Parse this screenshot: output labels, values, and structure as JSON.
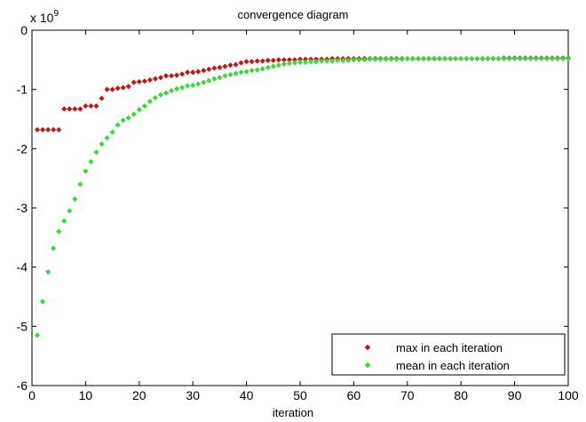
{
  "chart_data": {
    "type": "scatter",
    "title": "convergence diagram",
    "xlabel": "iteration",
    "ylabel": "",
    "y_multiplier_label": "x 10",
    "y_multiplier_exponent": "9",
    "xlim": [
      0,
      100
    ],
    "ylim": [
      -6,
      0
    ],
    "xticks": [
      0,
      10,
      20,
      30,
      40,
      50,
      60,
      70,
      80,
      90,
      100
    ],
    "yticks": [
      0,
      -1,
      -2,
      -3,
      -4,
      -5,
      -6
    ],
    "grid": false,
    "legend_position": "bottom-right",
    "series": [
      {
        "name": "max in each iteration",
        "color": "#cc1111",
        "x": [
          1,
          2,
          3,
          4,
          5,
          6,
          7,
          8,
          9,
          10,
          11,
          12,
          13,
          14,
          15,
          16,
          17,
          18,
          19,
          20,
          21,
          22,
          23,
          24,
          25,
          26,
          27,
          28,
          29,
          30,
          31,
          32,
          33,
          34,
          35,
          36,
          37,
          38,
          39,
          40,
          41,
          42,
          43,
          44,
          45,
          46,
          47,
          48,
          49,
          50,
          51,
          52,
          53,
          54,
          55,
          56,
          57,
          58,
          59,
          60,
          61,
          62,
          63,
          64,
          65,
          66,
          67,
          68,
          69,
          70,
          71,
          72,
          73,
          74,
          75,
          76,
          77,
          78,
          79,
          80,
          81,
          82,
          83,
          84,
          85,
          86,
          87,
          88,
          89,
          90,
          91,
          92,
          93,
          94,
          95,
          96,
          97,
          98,
          99,
          100
        ],
        "y": [
          -1.68,
          -1.68,
          -1.68,
          -1.68,
          -1.68,
          -1.33,
          -1.33,
          -1.33,
          -1.33,
          -1.28,
          -1.28,
          -1.28,
          -1.15,
          -1.0,
          -1.0,
          -0.98,
          -0.97,
          -0.95,
          -0.88,
          -0.87,
          -0.86,
          -0.84,
          -0.82,
          -0.8,
          -0.77,
          -0.77,
          -0.76,
          -0.74,
          -0.71,
          -0.71,
          -0.7,
          -0.68,
          -0.66,
          -0.64,
          -0.63,
          -0.61,
          -0.59,
          -0.58,
          -0.55,
          -0.53,
          -0.53,
          -0.52,
          -0.52,
          -0.51,
          -0.51,
          -0.5,
          -0.5,
          -0.5,
          -0.5,
          -0.49,
          -0.49,
          -0.49,
          -0.49,
          -0.49,
          -0.49,
          -0.48,
          -0.48,
          -0.48,
          -0.48,
          -0.48,
          -0.48,
          -0.48,
          -0.48,
          -0.48,
          -0.48,
          -0.48,
          -0.48,
          -0.48,
          -0.48,
          -0.48,
          -0.48,
          -0.48,
          -0.48,
          -0.48,
          -0.48,
          -0.48,
          -0.48,
          -0.48,
          -0.48,
          -0.48,
          -0.48,
          -0.48,
          -0.48,
          -0.48,
          -0.48,
          -0.48,
          -0.48,
          -0.47,
          -0.47,
          -0.47,
          -0.47,
          -0.47,
          -0.47,
          -0.47,
          -0.47,
          -0.47,
          -0.47,
          -0.47,
          -0.47,
          -0.47
        ]
      },
      {
        "name": "mean in each iteration",
        "color": "#33dd33",
        "x": [
          1,
          2,
          3,
          4,
          5,
          6,
          7,
          8,
          9,
          10,
          11,
          12,
          13,
          14,
          15,
          16,
          17,
          18,
          19,
          20,
          21,
          22,
          23,
          24,
          25,
          26,
          27,
          28,
          29,
          30,
          31,
          32,
          33,
          34,
          35,
          36,
          37,
          38,
          39,
          40,
          41,
          42,
          43,
          44,
          45,
          46,
          47,
          48,
          49,
          50,
          51,
          52,
          53,
          54,
          55,
          56,
          57,
          58,
          59,
          60,
          61,
          62,
          63,
          64,
          65,
          66,
          67,
          68,
          69,
          70,
          71,
          72,
          73,
          74,
          75,
          76,
          77,
          78,
          79,
          80,
          81,
          82,
          83,
          84,
          85,
          86,
          87,
          88,
          89,
          90,
          91,
          92,
          93,
          94,
          95,
          96,
          97,
          98,
          99,
          100
        ],
        "y": [
          -5.15,
          -4.58,
          -4.08,
          -3.68,
          -3.4,
          -3.22,
          -3.05,
          -2.85,
          -2.6,
          -2.38,
          -2.22,
          -2.06,
          -1.92,
          -1.82,
          -1.72,
          -1.6,
          -1.52,
          -1.48,
          -1.42,
          -1.34,
          -1.28,
          -1.2,
          -1.14,
          -1.09,
          -1.06,
          -1.02,
          -0.99,
          -0.97,
          -0.94,
          -0.93,
          -0.91,
          -0.88,
          -0.85,
          -0.82,
          -0.8,
          -0.77,
          -0.75,
          -0.73,
          -0.71,
          -0.7,
          -0.68,
          -0.67,
          -0.65,
          -0.63,
          -0.61,
          -0.59,
          -0.57,
          -0.56,
          -0.55,
          -0.54,
          -0.54,
          -0.53,
          -0.53,
          -0.52,
          -0.52,
          -0.52,
          -0.51,
          -0.51,
          -0.51,
          -0.5,
          -0.5,
          -0.5,
          -0.49,
          -0.49,
          -0.49,
          -0.49,
          -0.49,
          -0.49,
          -0.49,
          -0.48,
          -0.48,
          -0.48,
          -0.48,
          -0.48,
          -0.48,
          -0.48,
          -0.48,
          -0.48,
          -0.48,
          -0.48,
          -0.48,
          -0.48,
          -0.48,
          -0.48,
          -0.48,
          -0.48,
          -0.48,
          -0.48,
          -0.48,
          -0.48,
          -0.48,
          -0.48,
          -0.48,
          -0.48,
          -0.48,
          -0.48,
          -0.48,
          -0.48,
          -0.48,
          -0.48
        ]
      }
    ]
  }
}
